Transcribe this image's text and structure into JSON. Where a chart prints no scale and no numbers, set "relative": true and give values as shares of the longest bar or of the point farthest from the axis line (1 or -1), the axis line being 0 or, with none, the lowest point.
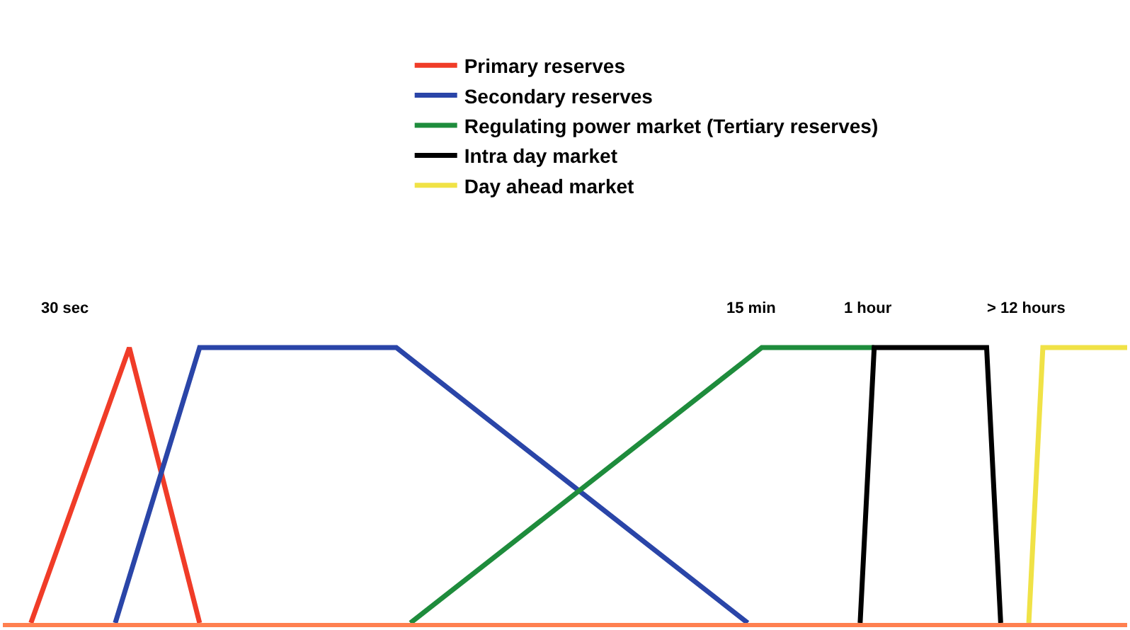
{
  "chart_data": {
    "type": "line",
    "relative": true,
    "legend": "top",
    "marker": "none",
    "categories": [
      null,
      null,
      null,
      null,
      null,
      null,
      null,
      null,
      null,
      null,
      null,
      null,
      null,
      null,
      null,
      null,
      null,
      null,
      null,
      null,
      null,
      null,
      null,
      null,
      null,
      null,
      null,
      null,
      null,
      null,
      null,
      null,
      null,
      null,
      null,
      null,
      null,
      null,
      null,
      null,
      null,
      null,
      null,
      null,
      null,
      null,
      null,
      null,
      null,
      null,
      null,
      null,
      null,
      null,
      null,
      null,
      null,
      null,
      null,
      null,
      null,
      null,
      null,
      null,
      null,
      null,
      null,
      null,
      null,
      null,
      null,
      null,
      null,
      null,
      null,
      null,
      null,
      null,
      null,
      null,
      null
    ],
    "series": [
      {
        "name": "Primary reserves",
        "color": "#f03c28",
        "values": [
          null,
          null,
          0,
          null,
          null,
          null,
          null,
          null,
          null,
          1,
          null,
          null,
          null,
          null,
          0,
          null,
          null,
          null,
          null,
          null,
          null,
          null,
          null,
          null,
          null,
          null,
          null,
          null,
          null,
          null,
          null,
          null,
          null,
          null,
          null,
          null,
          null,
          null,
          null,
          null,
          null,
          null,
          null,
          null,
          null,
          null,
          null,
          null,
          null,
          null,
          null,
          null,
          null,
          null,
          null,
          null,
          null,
          null,
          null,
          null,
          null,
          null,
          null,
          null,
          null,
          null,
          null,
          null,
          null,
          null,
          null,
          null,
          null,
          null,
          null,
          null,
          null,
          null,
          null,
          null,
          null
        ]
      },
      {
        "name": "Secondary reserves",
        "color": "#2a45a8",
        "values": [
          null,
          null,
          null,
          null,
          null,
          null,
          null,
          null,
          0,
          null,
          null,
          null,
          null,
          null,
          1,
          null,
          null,
          null,
          null,
          null,
          null,
          null,
          null,
          null,
          null,
          null,
          null,
          null,
          1,
          null,
          null,
          null,
          null,
          null,
          null,
          null,
          null,
          null,
          null,
          null,
          null,
          null,
          null,
          null,
          null,
          null,
          null,
          null,
          null,
          null,
          null,
          null,
          null,
          0,
          null,
          null,
          null,
          null,
          null,
          null,
          null,
          null,
          null,
          null,
          null,
          null,
          null,
          null,
          null,
          null,
          null,
          null,
          null,
          null,
          null,
          null,
          null,
          null,
          null,
          null,
          null
        ]
      },
      {
        "name": "Regulating power market (Tertiary reserves)",
        "color": "#1e8c3c",
        "values": [
          null,
          null,
          null,
          null,
          null,
          null,
          null,
          null,
          null,
          null,
          null,
          null,
          null,
          null,
          null,
          null,
          null,
          null,
          null,
          null,
          null,
          null,
          null,
          null,
          null,
          null,
          null,
          null,
          null,
          0,
          null,
          null,
          null,
          null,
          null,
          null,
          null,
          null,
          null,
          null,
          null,
          null,
          null,
          null,
          null,
          null,
          null,
          null,
          null,
          null,
          null,
          null,
          null,
          null,
          1,
          null,
          null,
          null,
          null,
          null,
          null,
          null,
          1,
          null,
          null,
          null,
          null,
          null,
          null,
          null,
          null,
          null,
          null,
          null,
          null,
          null,
          null,
          null,
          null,
          null,
          null
        ]
      },
      {
        "name": "Intra day market",
        "color": "#000000",
        "values": [
          null,
          null,
          null,
          null,
          null,
          null,
          null,
          null,
          null,
          null,
          null,
          null,
          null,
          null,
          null,
          null,
          null,
          null,
          null,
          null,
          null,
          null,
          null,
          null,
          null,
          null,
          null,
          null,
          null,
          null,
          null,
          null,
          null,
          null,
          null,
          null,
          null,
          null,
          null,
          null,
          null,
          null,
          null,
          null,
          null,
          null,
          null,
          null,
          null,
          null,
          null,
          null,
          null,
          null,
          null,
          null,
          null,
          null,
          null,
          null,
          null,
          0,
          1,
          null,
          null,
          null,
          null,
          null,
          null,
          null,
          1,
          0,
          null,
          null,
          null,
          null,
          null,
          null,
          null,
          null,
          null
        ]
      },
      {
        "name": "Day ahead market",
        "color": "#f0e246",
        "values": [
          null,
          null,
          null,
          null,
          null,
          null,
          null,
          null,
          null,
          null,
          null,
          null,
          null,
          null,
          null,
          null,
          null,
          null,
          null,
          null,
          null,
          null,
          null,
          null,
          null,
          null,
          null,
          null,
          null,
          null,
          null,
          null,
          null,
          null,
          null,
          null,
          null,
          null,
          null,
          null,
          null,
          null,
          null,
          null,
          null,
          null,
          null,
          null,
          null,
          null,
          null,
          null,
          null,
          null,
          null,
          null,
          null,
          null,
          null,
          null,
          null,
          null,
          null,
          null,
          null,
          null,
          null,
          null,
          null,
          null,
          null,
          null,
          null,
          0,
          1,
          null,
          null,
          null,
          null,
          null,
          1
        ]
      }
    ],
    "annotations": [
      "30 sec",
      "15 min",
      "1 hour",
      "> 12 hours"
    ]
  }
}
